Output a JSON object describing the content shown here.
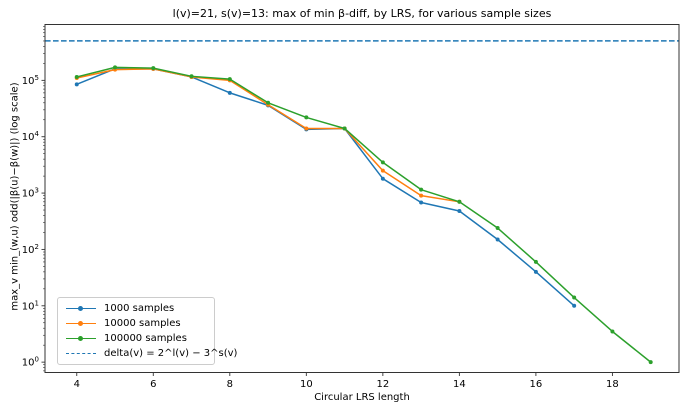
{
  "chart_data": {
    "type": "line",
    "title": "l(v)=21, s(v)=13: max of min β-diff, by LRS, for various sample sizes",
    "xlabel": "Circular LRS length",
    "ylabel": "max_v min_(w,u) odd(|β(u)−β(w)|)  (log scale)",
    "y_scale": "log",
    "xlim": [
      3.17,
      19.74
    ],
    "ylim": [
      0.655,
      980000
    ],
    "x_ticks": [
      4,
      6,
      8,
      10,
      12,
      14,
      16,
      18
    ],
    "y_tick_exponents": [
      0,
      1,
      2,
      3,
      4,
      5
    ],
    "grid": false,
    "legend_position": "lower-left",
    "series": [
      {
        "name": "1000 samples",
        "color": "#1f77b4",
        "x": [
          4,
          5,
          6,
          7,
          8,
          9,
          10,
          11,
          12,
          13,
          14,
          15,
          16,
          17
        ],
        "y": [
          85000,
          160000,
          160000,
          115000,
          60000,
          36000,
          13500,
          14000,
          1800,
          680,
          480,
          150,
          40,
          10
        ]
      },
      {
        "name": "10000 samples",
        "color": "#ff7f0e",
        "x": [
          4,
          5,
          6,
          7,
          8,
          9,
          10,
          11,
          12,
          13,
          14
        ],
        "y": [
          110000,
          155000,
          160000,
          115000,
          100000,
          37000,
          14000,
          14000,
          2500,
          900,
          700
        ]
      },
      {
        "name": "100000 samples",
        "color": "#2ca02c",
        "x": [
          4,
          5,
          6,
          7,
          8,
          9,
          10,
          11,
          12,
          13,
          14,
          15,
          16,
          17,
          18,
          19
        ],
        "y": [
          115000,
          170000,
          165000,
          118000,
          105000,
          40000,
          22000,
          14000,
          3500,
          1150,
          700,
          240,
          60,
          14,
          3.5,
          1.0
        ]
      }
    ],
    "hline": {
      "label": "delta(v) = 2^l(v) − 3^s(v)",
      "value": 502829,
      "color": "#1f77b4",
      "dashed": true
    }
  }
}
